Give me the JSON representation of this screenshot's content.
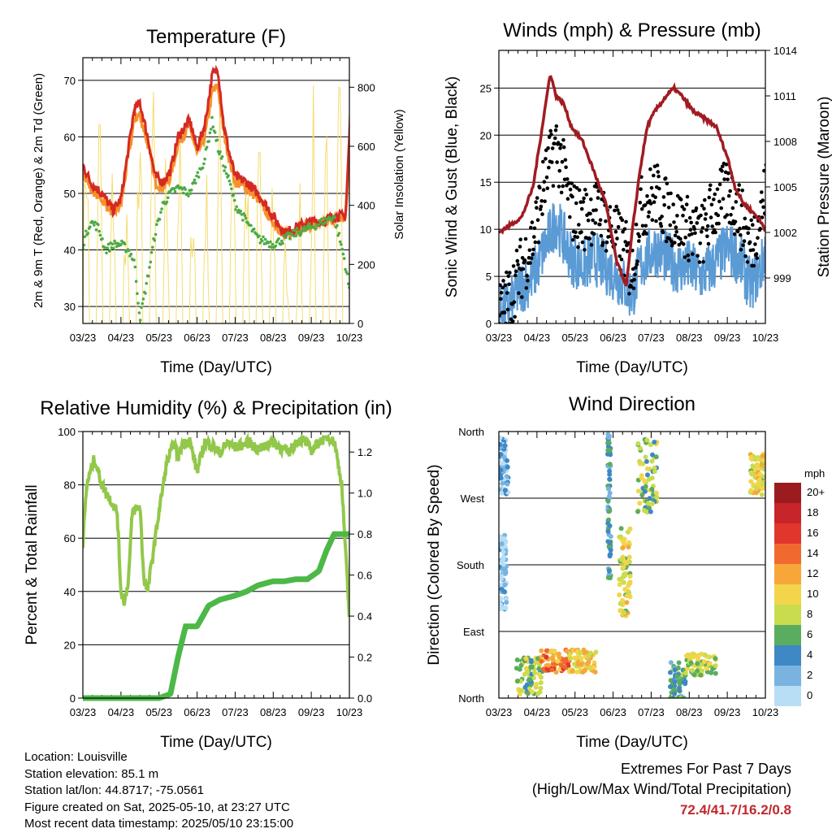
{
  "chart_data": [
    {
      "id": "temperature",
      "type": "line",
      "title": "Temperature (F)",
      "xlabel": "Time (Day/UTC)",
      "ylabel": "2m & 9m T (Red, Orange) & 2m Td (Green)",
      "y2label": "Solar Insolation (Yellow)",
      "x_ticks": [
        "03/23",
        "04/23",
        "05/23",
        "06/23",
        "07/23",
        "08/23",
        "09/23",
        "10/23"
      ],
      "ylim": [
        27,
        74
      ],
      "y_ticks": [
        30,
        40,
        50,
        60,
        70
      ],
      "y2lim": [
        0,
        900
      ],
      "y2_ticks": [
        0,
        200,
        400,
        600,
        800
      ],
      "grid": true,
      "series": [
        {
          "name": "2m T",
          "color": "#d42a22",
          "style": "line",
          "x": [
            0,
            0.2,
            0.5,
            0.8,
            1,
            1.2,
            1.35,
            1.5,
            1.7,
            1.9,
            2.1,
            2.3,
            2.5,
            2.8,
            3,
            3.2,
            3.4,
            3.55,
            3.7,
            3.85,
            4,
            4.3,
            4.6,
            5,
            5.3,
            5.6,
            6,
            6.3,
            6.6,
            6.9,
            7,
            7.05
          ],
          "y": [
            55,
            52,
            50,
            47,
            49,
            58,
            65,
            66,
            60,
            53,
            52,
            54,
            60,
            63,
            58,
            62,
            71,
            72,
            62,
            57,
            53,
            52,
            50,
            46,
            43,
            44,
            45,
            45,
            46,
            46,
            60,
            69
          ]
        },
        {
          "name": "9m T",
          "color": "#f7912d",
          "style": "line",
          "x": [
            0,
            0.2,
            0.5,
            0.8,
            1,
            1.2,
            1.35,
            1.5,
            1.7,
            1.9,
            2.1,
            2.3,
            2.5,
            2.8,
            3,
            3.2,
            3.4,
            3.55,
            3.7,
            3.85,
            4,
            4.3,
            4.6,
            5,
            5.3,
            5.6,
            6,
            6.3,
            6.6,
            6.9,
            7,
            7.05
          ],
          "y": [
            54,
            51,
            49,
            46.5,
            48,
            57,
            63,
            64,
            59,
            52,
            51,
            53,
            59,
            62,
            57,
            60,
            68,
            69,
            61,
            56,
            52,
            51,
            49,
            45,
            42.5,
            43.5,
            44.5,
            44.5,
            45.5,
            45.5,
            59,
            67
          ]
        },
        {
          "name": "2m Td",
          "color": "#4cab44",
          "style": "dots",
          "x": [
            0,
            0.2,
            0.4,
            0.6,
            0.8,
            1,
            1.2,
            1.35,
            1.5,
            1.7,
            1.9,
            2.1,
            2.3,
            2.5,
            2.8,
            3,
            3.2,
            3.4,
            3.55,
            3.7,
            3.85,
            4,
            4.3,
            4.6,
            5,
            5.3,
            5.6,
            6,
            6.3,
            6.6,
            6.85,
            7
          ],
          "y": [
            41,
            45,
            44,
            40,
            41,
            41,
            40,
            38,
            28,
            35,
            43,
            48,
            50,
            51,
            50,
            53,
            56,
            63,
            58,
            55,
            52,
            48,
            45,
            42,
            41,
            42,
            43,
            44,
            45,
            46,
            39,
            33
          ]
        },
        {
          "name": "Solar",
          "color": "#f5dc6e",
          "style": "spikes",
          "axis": "y2",
          "peak": [
            850,
            830,
            600,
            480,
            860,
            870,
            650,
            720,
            540,
            560,
            800,
            860,
            620,
            780,
            500,
            470,
            200,
            560,
            850,
            880,
            900
          ]
        }
      ]
    },
    {
      "id": "winds",
      "type": "scatter",
      "title": "Winds (mph) & Pressure (mb)",
      "xlabel": "Time (Day/UTC)",
      "ylabel": "Sonic Wind & Gust (Blue, Black)",
      "y2label": "Station Pressure (Maroon)",
      "x_ticks": [
        "03/23",
        "04/23",
        "05/23",
        "06/23",
        "07/23",
        "08/23",
        "09/23",
        "10/23"
      ],
      "ylim": [
        0,
        29
      ],
      "y_ticks": [
        0,
        5,
        10,
        15,
        20,
        25
      ],
      "y2lim": [
        996,
        1014
      ],
      "y2_ticks": [
        999,
        1002,
        1005,
        1008,
        1011,
        1014
      ],
      "grid": true,
      "series": [
        {
          "name": "Gust",
          "color": "#000000",
          "style": "dots",
          "x": [
            0,
            0.3,
            0.6,
            0.9,
            1.2,
            1.5,
            1.7,
            1.9,
            2.2,
            2.5,
            2.8,
            3.1,
            3.3,
            3.5,
            3.7,
            3.9,
            4.1,
            4.4,
            4.7,
            5,
            5.3,
            5.6,
            6,
            6.3,
            6.6,
            6.9,
            7.05
          ],
          "y": [
            1,
            3,
            6,
            9,
            15,
            19,
            16,
            12,
            11,
            12,
            11,
            9,
            8,
            5,
            12,
            13,
            14,
            12,
            11,
            10,
            9,
            12,
            14,
            12,
            8,
            12,
            15
          ]
        },
        {
          "name": "Sonic Wind",
          "color": "#5b9bd5",
          "style": "dots",
          "x": [
            0,
            0.3,
            0.6,
            0.9,
            1.2,
            1.5,
            1.7,
            1.9,
            2.2,
            2.5,
            2.8,
            3.1,
            3.3,
            3.5,
            3.7,
            3.9,
            4.1,
            4.4,
            4.7,
            5,
            5.3,
            5.6,
            6,
            6.3,
            6.6,
            6.9,
            7.05
          ],
          "y": [
            1,
            2,
            4,
            5,
            8,
            11,
            9,
            7,
            6,
            7,
            6,
            5,
            4,
            3,
            6,
            7,
            8,
            7,
            6,
            6,
            5,
            6,
            8,
            7,
            4,
            6,
            9
          ]
        },
        {
          "name": "Station Pressure",
          "color": "#a01c22",
          "style": "line",
          "x": [
            0,
            0.3,
            0.6,
            0.9,
            1.2,
            1.35,
            1.5,
            1.7,
            1.9,
            2.2,
            2.5,
            2.8,
            3.1,
            3.35,
            3.5,
            3.7,
            3.9,
            4.1,
            4.4,
            4.6,
            4.8,
            5.1,
            5.4,
            5.7,
            6,
            6.2,
            6.4,
            6.6,
            6.8,
            7.05
          ],
          "y": [
            1002,
            1002.5,
            1003,
            1005,
            1010,
            1012.5,
            1011,
            1010.5,
            1009,
            1008,
            1006,
            1004,
            1000,
            998.5,
            1002,
            1006,
            1009,
            1010,
            1011,
            1011.5,
            1011,
            1010,
            1009.5,
            1009,
            1007,
            1005,
            1004,
            1003.5,
            1003,
            1002
          ]
        }
      ]
    },
    {
      "id": "rh",
      "type": "line",
      "title": "Relative Humidity (%) & Precipitation (in)",
      "xlabel": "Time (Day/UTC)",
      "ylabel": "Percent & Total Rainfall",
      "x_ticks": [
        "03/23",
        "04/23",
        "05/23",
        "06/23",
        "07/23",
        "08/23",
        "09/23",
        "10/23"
      ],
      "ylim": [
        0,
        100
      ],
      "y_ticks": [
        0,
        20,
        40,
        60,
        80,
        100
      ],
      "y2lim": [
        0,
        1.3
      ],
      "y2_ticks": [
        "0.0",
        "0.2",
        "0.4",
        "0.6",
        "0.8",
        "1.0",
        "1.2"
      ],
      "grid": true,
      "series": [
        {
          "name": "RH",
          "color": "#92c84a",
          "style": "line",
          "x": [
            0,
            0.1,
            0.3,
            0.5,
            0.7,
            0.9,
            1,
            1.1,
            1.2,
            1.3,
            1.5,
            1.6,
            1.7,
            1.8,
            2,
            2.2,
            2.4,
            2.5,
            2.6,
            2.8,
            3,
            3.2,
            3.4,
            3.6,
            3.8,
            4,
            4.2,
            4.4,
            4.6,
            4.8,
            5,
            5.2,
            5.4,
            5.6,
            5.8,
            6,
            6.2,
            6.4,
            6.6,
            6.8,
            7,
            7.05
          ],
          "y": [
            58,
            80,
            90,
            80,
            75,
            70,
            40,
            36,
            45,
            70,
            72,
            45,
            40,
            50,
            70,
            88,
            96,
            90,
            95,
            97,
            85,
            96,
            95,
            92,
            96,
            94,
            95,
            96,
            93,
            95,
            96,
            94,
            92,
            96,
            97,
            93,
            96,
            98,
            97,
            80,
            30,
            44
          ]
        },
        {
          "name": "Total Rainfall",
          "color": "#4cb847",
          "style": "line",
          "axis": "y2",
          "x": [
            0,
            0.5,
            1,
            1.5,
            2,
            2.3,
            2.5,
            2.7,
            3,
            3.3,
            3.6,
            4,
            4.3,
            4.6,
            5,
            5.3,
            5.6,
            5.9,
            6.2,
            6.4,
            6.6,
            7,
            7.05
          ],
          "y": [
            0,
            0,
            0,
            0,
            0,
            0.02,
            0.2,
            0.35,
            0.35,
            0.45,
            0.48,
            0.5,
            0.52,
            0.55,
            0.57,
            0.57,
            0.58,
            0.58,
            0.62,
            0.72,
            0.8,
            0.8,
            0.8
          ]
        }
      ]
    },
    {
      "id": "winddir",
      "type": "scatter",
      "title": "Wind Direction",
      "xlabel": "Time (Day/UTC)",
      "ylabel": "Direction (Colored By Speed)",
      "x_ticks": [
        "03/23",
        "04/23",
        "05/23",
        "06/23",
        "07/23",
        "08/23",
        "09/23",
        "10/23"
      ],
      "y_ticks": [
        "North",
        "East",
        "South",
        "West",
        "North"
      ],
      "ylim": [
        0,
        360
      ],
      "grid": true,
      "colorbar": {
        "title": "mph",
        "labels": [
          "20+",
          "18",
          "16",
          "14",
          "12",
          "10",
          "8",
          "6",
          "4",
          "2",
          "0"
        ],
        "colors": [
          "#9b1c1f",
          "#c8252a",
          "#e0362e",
          "#f06a30",
          "#f7a73a",
          "#f2d54a",
          "#c9dc4e",
          "#5aad5f",
          "#3e88c5",
          "#7ab3e0",
          "#b8def5"
        ]
      },
      "clusters": [
        {
          "x": 0.1,
          "y": 315,
          "spread_x": 0.15,
          "spread_y": 40,
          "speed": 2
        },
        {
          "x": 0.1,
          "y": 170,
          "spread_x": 0.1,
          "spread_y": 50,
          "speed": 1
        },
        {
          "x": 0.8,
          "y": 30,
          "spread_x": 0.35,
          "spread_y": 25,
          "speed": 7
        },
        {
          "x": 1.5,
          "y": 50,
          "spread_x": 0.4,
          "spread_y": 15,
          "speed": 13
        },
        {
          "x": 2.2,
          "y": 50,
          "spread_x": 0.35,
          "spread_y": 15,
          "speed": 10
        },
        {
          "x": 2.9,
          "y": 260,
          "spread_x": 0.04,
          "spread_y": 100,
          "speed": 4
        },
        {
          "x": 3.3,
          "y": 170,
          "spread_x": 0.15,
          "spread_y": 60,
          "speed": 9
        },
        {
          "x": 3.9,
          "y": 300,
          "spread_x": 0.25,
          "spread_y": 50,
          "speed": 7
        },
        {
          "x": 4.7,
          "y": 20,
          "spread_x": 0.2,
          "spread_y": 30,
          "speed": 5
        },
        {
          "x": 5.3,
          "y": 45,
          "spread_x": 0.4,
          "spread_y": 15,
          "speed": 8
        },
        {
          "x": 6.8,
          "y": 300,
          "spread_x": 0.2,
          "spread_y": 30,
          "speed": 9
        }
      ]
    }
  ],
  "info": {
    "location": "Location: Louisville",
    "elevation": "Station elevation: 85.1 m",
    "latlon": "Station lat/lon: 44.8717; -75.0561",
    "created": "Figure created on Sat, 2025-05-10, at 23:27 UTC",
    "latest": "Most recent data timestamp: 2025/05/10 23:15:00"
  },
  "extremes": {
    "title": "Extremes For Past 7 Days",
    "subtitle": "(High/Low/Max Wind/Total Precipitation)",
    "value": "72.4/41.7/16.2/0.8"
  }
}
